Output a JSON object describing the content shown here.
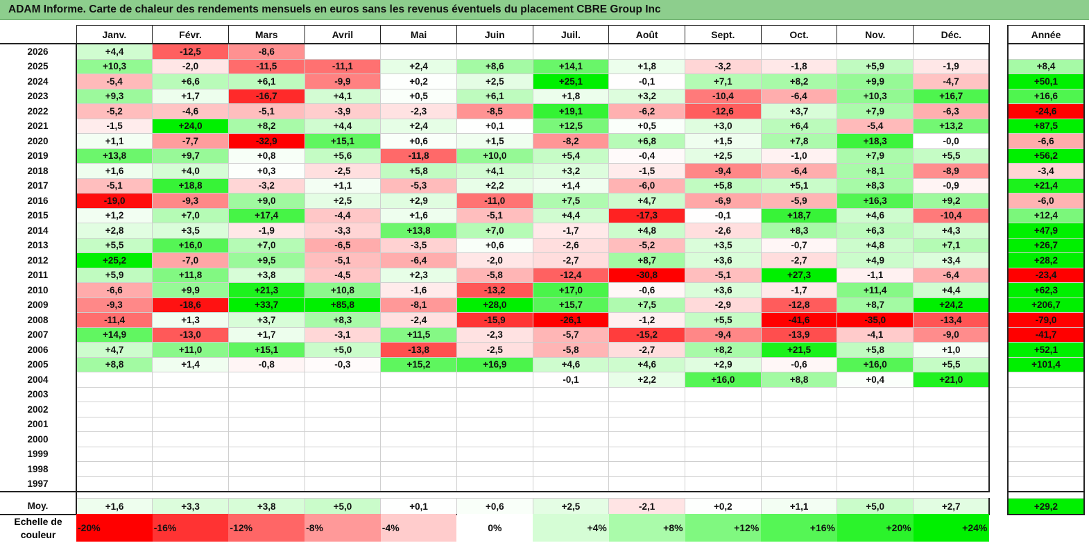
{
  "title": "ADAM Informe. Carte de chaleur des rendements mensuels en euros sans les revenus éventuels du placement CBRE Group Inc",
  "chart_data": {
    "type": "heatmap",
    "title": "ADAM Informe. Carte de chaleur des rendements mensuels en euros sans les revenus éventuels du placement CBRE Group Inc",
    "columns": [
      "Janv.",
      "Févr.",
      "Mars",
      "Avril",
      "Mai",
      "Juin",
      "Juil.",
      "Août",
      "Sept.",
      "Oct.",
      "Nov.",
      "Déc."
    ],
    "year_header": "Année",
    "average_label": "Moy.",
    "rows": [
      {
        "year": "2026",
        "values": [
          "+4,4",
          "-12,5",
          "-8,6",
          "",
          "",
          "",
          "",
          "",
          "",
          "",
          "",
          ""
        ],
        "annual": ""
      },
      {
        "year": "2025",
        "values": [
          "+10,3",
          "-2,0",
          "-11,5",
          "-11,1",
          "+2,4",
          "+8,6",
          "+14,1",
          "+1,8",
          "-3,2",
          "-1,8",
          "+5,9",
          "-1,9"
        ],
        "annual": "+8,4"
      },
      {
        "year": "2024",
        "values": [
          "-5,4",
          "+6,6",
          "+6,1",
          "-9,9",
          "+0,2",
          "+2,5",
          "+25,1",
          "-0,1",
          "+7,1",
          "+8,2",
          "+9,9",
          "-4,7"
        ],
        "annual": "+50,1"
      },
      {
        "year": "2023",
        "values": [
          "+9,3",
          "+1,7",
          "-16,7",
          "+4,1",
          "+0,5",
          "+6,1",
          "+1,8",
          "+3,2",
          "-10,4",
          "-6,4",
          "+10,3",
          "+16,7"
        ],
        "annual": "+16,6"
      },
      {
        "year": "2022",
        "values": [
          "-5,2",
          "-4,6",
          "-5,1",
          "-3,9",
          "-2,3",
          "-8,5",
          "+19,1",
          "-6,2",
          "-12,6",
          "+3,7",
          "+7,9",
          "-6,3"
        ],
        "annual": "-24,6"
      },
      {
        "year": "2021",
        "values": [
          "-1,5",
          "+24,0",
          "+8,2",
          "+4,4",
          "+2,4",
          "+0,1",
          "+12,5",
          "+0,5",
          "+3,0",
          "+6,4",
          "-5,4",
          "+13,2"
        ],
        "annual": "+87,5"
      },
      {
        "year": "2020",
        "values": [
          "+1,1",
          "-7,7",
          "-32,9",
          "+15,1",
          "+0,6",
          "+1,5",
          "-8,2",
          "+6,8",
          "+1,5",
          "+7,8",
          "+18,3",
          "-0,0"
        ],
        "annual": "-6,6"
      },
      {
        "year": "2019",
        "values": [
          "+13,8",
          "+9,7",
          "+0,8",
          "+5,6",
          "-11,8",
          "+10,0",
          "+5,4",
          "-0,4",
          "+2,5",
          "-1,0",
          "+7,9",
          "+5,5"
        ],
        "annual": "+56,2"
      },
      {
        "year": "2018",
        "values": [
          "+1,6",
          "+4,0",
          "+0,3",
          "-2,5",
          "+5,8",
          "+4,1",
          "+3,2",
          "-1,5",
          "-9,4",
          "-6,4",
          "+8,1",
          "-8,9"
        ],
        "annual": "-3,4"
      },
      {
        "year": "2017",
        "values": [
          "-5,1",
          "+18,8",
          "-3,2",
          "+1,1",
          "-5,3",
          "+2,2",
          "+1,4",
          "-6,0",
          "+5,8",
          "+5,1",
          "+8,3",
          "-0,9"
        ],
        "annual": "+21,4"
      },
      {
        "year": "2016",
        "values": [
          "-19,0",
          "-9,3",
          "+9,0",
          "+2,5",
          "+2,9",
          "-11,0",
          "+7,5",
          "+4,7",
          "-6,9",
          "-5,9",
          "+16,3",
          "+9,2"
        ],
        "annual": "-6,0"
      },
      {
        "year": "2015",
        "values": [
          "+1,2",
          "+7,0",
          "+17,4",
          "-4,4",
          "+1,6",
          "-5,1",
          "+4,4",
          "-17,3",
          "-0,1",
          "+18,7",
          "+4,6",
          "-10,4"
        ],
        "annual": "+12,4"
      },
      {
        "year": "2014",
        "values": [
          "+2,8",
          "+3,5",
          "-1,9",
          "-3,3",
          "+13,8",
          "+7,0",
          "-1,7",
          "+4,8",
          "-2,6",
          "+8,3",
          "+6,3",
          "+4,3"
        ],
        "annual": "+47,9"
      },
      {
        "year": "2013",
        "values": [
          "+5,5",
          "+16,0",
          "+7,0",
          "-6,5",
          "-3,5",
          "+0,6",
          "-2,6",
          "-5,2",
          "+3,5",
          "-0,7",
          "+4,8",
          "+7,1"
        ],
        "annual": "+26,7"
      },
      {
        "year": "2012",
        "values": [
          "+25,2",
          "-7,0",
          "+9,5",
          "-5,1",
          "-6,4",
          "-2,0",
          "-2,7",
          "+8,7",
          "+3,6",
          "-2,7",
          "+4,9",
          "+3,4"
        ],
        "annual": "+28,2"
      },
      {
        "year": "2011",
        "values": [
          "+5,9",
          "+11,8",
          "+3,8",
          "-4,5",
          "+2,3",
          "-5,8",
          "-12,4",
          "-30,8",
          "-5,1",
          "+27,3",
          "-1,1",
          "-6,4"
        ],
        "annual": "-23,4"
      },
      {
        "year": "2010",
        "values": [
          "-6,6",
          "+9,9",
          "+21,3",
          "+10,8",
          "-1,6",
          "-13,2",
          "+17,0",
          "-0,6",
          "+3,6",
          "-1,7",
          "+11,4",
          "+4,4"
        ],
        "annual": "+62,3"
      },
      {
        "year": "2009",
        "values": [
          "-9,3",
          "-18,6",
          "+33,7",
          "+85,8",
          "-8,1",
          "+28,0",
          "+15,7",
          "+7,5",
          "-2,9",
          "-12,8",
          "+8,7",
          "+24,2"
        ],
        "annual": "+206,7"
      },
      {
        "year": "2008",
        "values": [
          "-11,4",
          "+1,3",
          "+3,7",
          "+8,3",
          "-2,4",
          "-15,9",
          "-26,1",
          "-1,2",
          "+5,5",
          "-41,6",
          "-35,0",
          "-13,4"
        ],
        "annual": "-79,0"
      },
      {
        "year": "2007",
        "values": [
          "+14,9",
          "-13,0",
          "+1,7",
          "-3,1",
          "+11,5",
          "-2,3",
          "-5,7",
          "-15,2",
          "-9,4",
          "-13,9",
          "-4,1",
          "-9,0"
        ],
        "annual": "-41,7"
      },
      {
        "year": "2006",
        "values": [
          "+4,7",
          "+11,0",
          "+15,1",
          "+5,0",
          "-13,8",
          "-2,5",
          "-5,8",
          "-2,7",
          "+8,2",
          "+21,5",
          "+5,8",
          "+1,0"
        ],
        "annual": "+52,1"
      },
      {
        "year": "2005",
        "values": [
          "+8,8",
          "+1,4",
          "-0,8",
          "-0,3",
          "+15,2",
          "+16,9",
          "+4,6",
          "+4,6",
          "+2,9",
          "-0,6",
          "+16,0",
          "+5,5"
        ],
        "annual": "+101,4"
      },
      {
        "year": "2004",
        "values": [
          "",
          "",
          "",
          "",
          "",
          "",
          "-0,1",
          "+2,2",
          "+16,0",
          "+8,8",
          "+0,4",
          "+21,0"
        ],
        "annual": ""
      },
      {
        "year": "2003",
        "values": [
          "",
          "",
          "",
          "",
          "",
          "",
          "",
          "",
          "",
          "",
          "",
          ""
        ],
        "annual": ""
      },
      {
        "year": "2002",
        "values": [
          "",
          "",
          "",
          "",
          "",
          "",
          "",
          "",
          "",
          "",
          "",
          ""
        ],
        "annual": ""
      },
      {
        "year": "2001",
        "values": [
          "",
          "",
          "",
          "",
          "",
          "",
          "",
          "",
          "",
          "",
          "",
          ""
        ],
        "annual": ""
      },
      {
        "year": "2000",
        "values": [
          "",
          "",
          "",
          "",
          "",
          "",
          "",
          "",
          "",
          "",
          "",
          ""
        ],
        "annual": ""
      },
      {
        "year": "1999",
        "values": [
          "",
          "",
          "",
          "",
          "",
          "",
          "",
          "",
          "",
          "",
          "",
          ""
        ],
        "annual": ""
      },
      {
        "year": "1998",
        "values": [
          "",
          "",
          "",
          "",
          "",
          "",
          "",
          "",
          "",
          "",
          "",
          ""
        ],
        "annual": ""
      },
      {
        "year": "1997",
        "values": [
          "",
          "",
          "",
          "",
          "",
          "",
          "",
          "",
          "",
          "",
          "",
          ""
        ],
        "annual": ""
      }
    ],
    "averages": [
      "+1,6",
      "+3,3",
      "+3,8",
      "+5,0",
      "+0,1",
      "+0,6",
      "+2,5",
      "-2,1",
      "+0,2",
      "+1,1",
      "+5,0",
      "+2,7"
    ],
    "average_annual": "+29,2"
  },
  "legend": {
    "label": "Echelle de couleur",
    "steps": [
      {
        "text": "-20%",
        "value": -20,
        "color": "#ff0000"
      },
      {
        "text": "-16%",
        "value": -16,
        "color": "#ff3333"
      },
      {
        "text": "-12%",
        "value": -12,
        "color": "#ff6666"
      },
      {
        "text": "-8%",
        "value": -8,
        "color": "#ff9999"
      },
      {
        "text": "-4%",
        "value": -4,
        "color": "#ffcccc"
      },
      {
        "text": "0%",
        "value": 0,
        "color": "#ffffff"
      },
      {
        "text": "+4%",
        "value": 4,
        "color": "#d5fdd5"
      },
      {
        "text": "+8%",
        "value": 8,
        "color": "#aafbaa"
      },
      {
        "text": "+12%",
        "value": 12,
        "color": "#80f880"
      },
      {
        "text": "+16%",
        "value": 16,
        "color": "#55f655"
      },
      {
        "text": "+20%",
        "value": 20,
        "color": "#2bf32b"
      },
      {
        "text": "+24%",
        "value": 24,
        "color": "#00f000"
      }
    ]
  }
}
